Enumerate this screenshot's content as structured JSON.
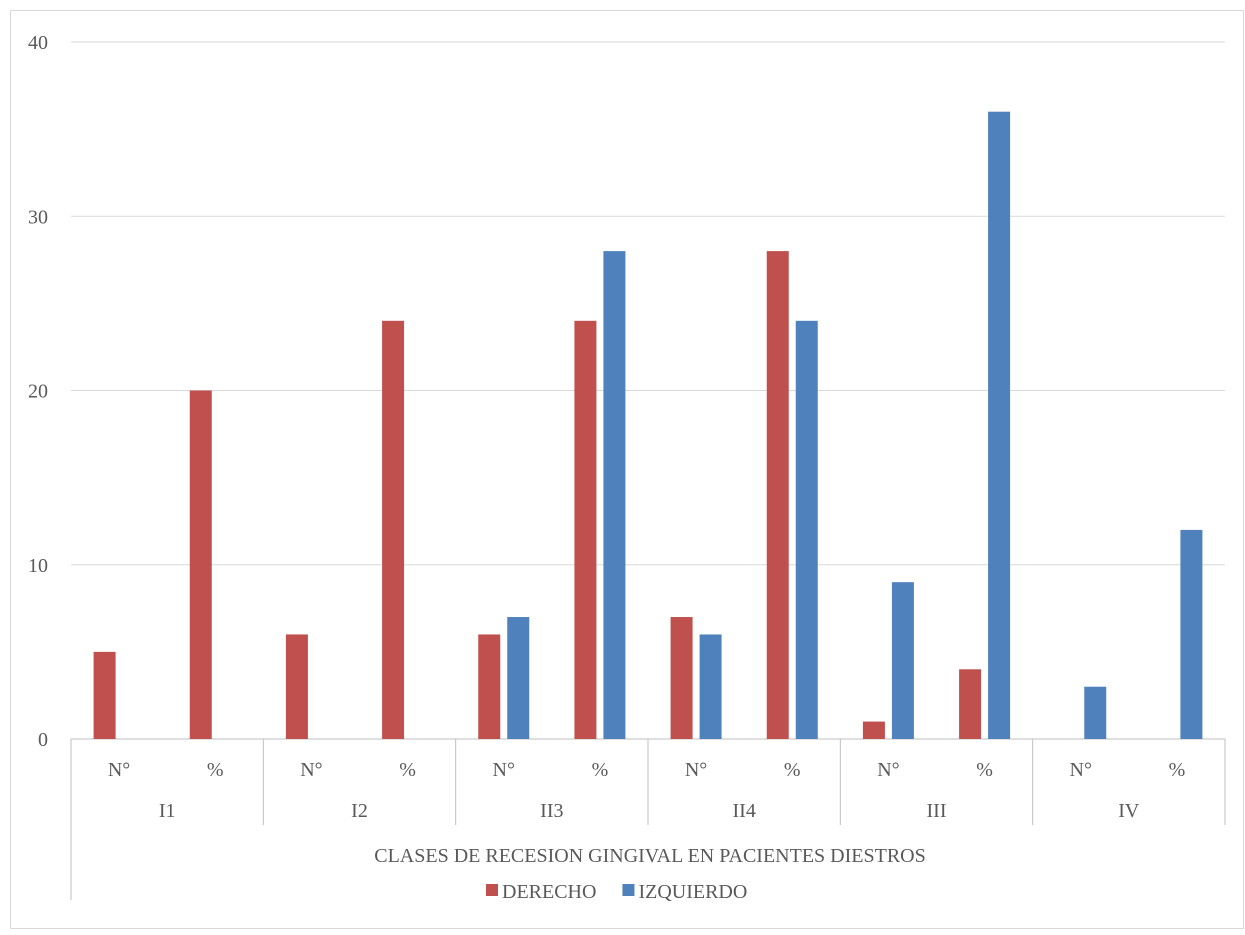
{
  "chart_data": {
    "type": "bar",
    "title": "",
    "xlabel": "CLASES DE  RECESION GINGIVAL EN PACIENTES DIESTROS",
    "ylabel": "",
    "ylim": [
      0,
      40
    ],
    "yticks": [
      0,
      10,
      20,
      30,
      40
    ],
    "groups": [
      "I1",
      "I2",
      "II3",
      "II4",
      "III",
      "IV"
    ],
    "categories": [
      "N°",
      "%",
      "N°",
      "%",
      "N°",
      "%",
      "N°",
      "%",
      "N°",
      "%",
      "N°",
      "%"
    ],
    "series": [
      {
        "name": "DERECHO",
        "color": "#C0504D",
        "values": [
          5,
          20,
          6,
          24,
          6,
          24,
          7,
          28,
          1,
          4,
          0,
          0
        ]
      },
      {
        "name": "IZQUIERDO",
        "color": "#4F81BD",
        "values": [
          0,
          0,
          0,
          0,
          7,
          28,
          6,
          24,
          9,
          36,
          3,
          12
        ]
      }
    ],
    "grid": true,
    "legend_position": "bottom",
    "gridline_color": "#D9D9D9",
    "axis_line_color": "#BFBFBF",
    "text_color": "#595959"
  }
}
